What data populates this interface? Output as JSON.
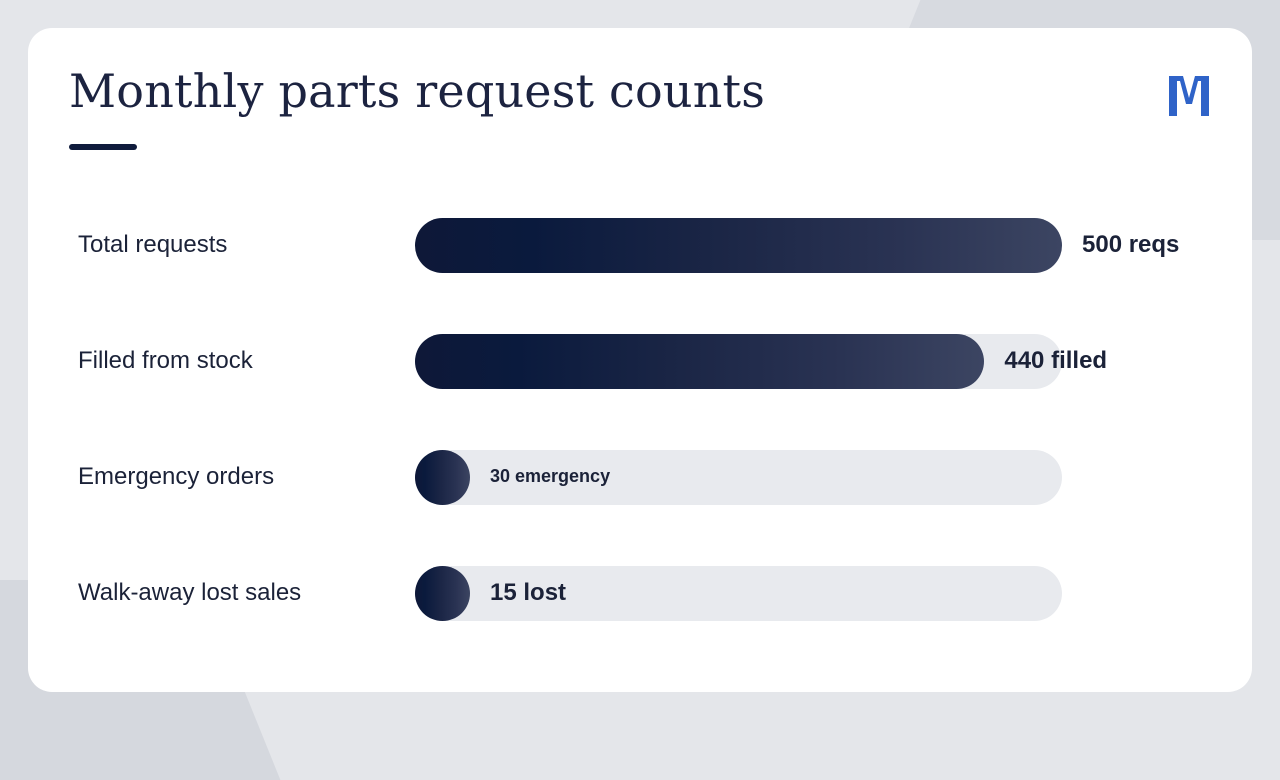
{
  "title": "Monthly parts request counts",
  "colors": {
    "bar_dark": "#0e1838",
    "bar_light": "#3c4562",
    "track": "#e8eaee",
    "logo_blue": "#2f63c8",
    "text": "#1b2238"
  },
  "icons": {
    "logo": "brand-logo-icon"
  },
  "chart_data": {
    "type": "bar",
    "orientation": "horizontal",
    "title": "Monthly parts request counts",
    "categories": [
      "Total requests",
      "Filled from stock",
      "Emergency orders",
      "Walk-away lost sales"
    ],
    "values": [
      500,
      440,
      30,
      15
    ],
    "data_labels": [
      "500 reqs",
      "440 filled",
      "30 emergency",
      "15 lost"
    ],
    "xlim": [
      0,
      500
    ],
    "grid": false
  }
}
